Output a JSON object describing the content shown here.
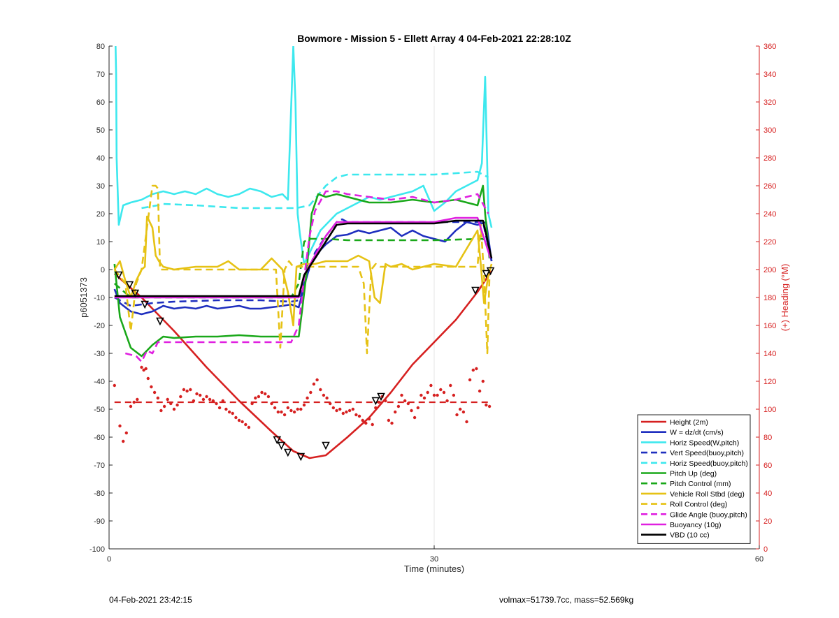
{
  "chart_data": {
    "type": "line",
    "title": "Bowmore - Mission 5 - Ellett Array 4 04-Feb-2021 22:28:10Z",
    "xlabel": "Time (minutes)",
    "ylabel": "p6051373",
    "y2label": "(+) Heading (°M)",
    "xlim": [
      0,
      60
    ],
    "ylim": [
      -100,
      80
    ],
    "y2lim": [
      0,
      360
    ],
    "x_ticks": [
      0,
      30,
      60
    ],
    "y_ticks": [
      -100,
      -90,
      -80,
      -70,
      -60,
      -50,
      -40,
      -30,
      -20,
      -10,
      0,
      10,
      20,
      30,
      40,
      50,
      60,
      70,
      80
    ],
    "y2_ticks": [
      0,
      20,
      40,
      60,
      80,
      100,
      120,
      140,
      160,
      180,
      200,
      220,
      240,
      260,
      280,
      300,
      320,
      340,
      360
    ],
    "grid": "x-only at 30",
    "legend_position": "bottom-right",
    "colors": {
      "height": "#d62020",
      "w": "#1f2fbf",
      "horiz": "#3de8ee",
      "pitch": "#1aa81a",
      "roll": "#e6c215",
      "glide": "#e020e0",
      "vbd": "#000000",
      "right_axis": "#d62020"
    },
    "series": [
      {
        "name": "Height (2m)",
        "style": "solid",
        "color": "#d62020",
        "x": [
          0.5,
          3,
          6,
          9,
          12,
          15,
          17,
          18.5,
          20,
          22,
          24,
          26,
          28,
          30,
          32,
          34,
          35.3
        ],
        "y": [
          -1.5,
          -10,
          -22,
          -35,
          -47,
          -58,
          -65,
          -67.5,
          -66.5,
          -60,
          -53,
          -44,
          -34,
          -26,
          -18,
          -8,
          -0.5
        ]
      },
      {
        "name": "W = dz/dt (cm/s)",
        "style": "solid",
        "color": "#1f2fbf",
        "x": [
          0.5,
          1,
          2,
          3,
          4,
          5,
          6,
          7,
          8,
          9,
          10,
          11,
          12,
          13,
          14,
          15,
          16,
          16.8,
          17.5,
          18,
          18.5,
          19,
          19.5,
          20,
          21,
          22,
          23,
          24,
          25,
          26,
          27,
          28,
          29,
          30,
          31,
          32,
          33,
          34,
          34.8,
          35.3
        ],
        "y": [
          -7,
          -12,
          -15,
          -16,
          -15,
          -13,
          -14,
          -13.5,
          -14,
          -13,
          -14,
          -13.5,
          -13,
          -14,
          -14,
          -13.5,
          -13,
          -12.5,
          -13.5,
          -6,
          1,
          4,
          7,
          9,
          12,
          12.5,
          14,
          13,
          14,
          15,
          12,
          14,
          12,
          11,
          10,
          14,
          17,
          16,
          17,
          3
        ]
      },
      {
        "name": "Horiz Speed(W,pitch)",
        "style": "solid",
        "color": "#3de8ee",
        "x": [
          0.6,
          0.65,
          0.7,
          0.9,
          1.3,
          2,
          3,
          4,
          5,
          6,
          7,
          8,
          9,
          10,
          11,
          12,
          13,
          14,
          15,
          16,
          16.5,
          17,
          17.2,
          17.4,
          17.6,
          18,
          18.5,
          19,
          19.5,
          20,
          21,
          22,
          23,
          24,
          25,
          26,
          27,
          28,
          29,
          30,
          31,
          32,
          33,
          34,
          34.4,
          34.7,
          35,
          35.3
        ],
        "y": [
          80,
          70,
          40,
          16,
          23,
          24,
          25,
          27,
          28,
          27,
          28,
          27,
          29,
          27,
          26,
          27,
          29,
          28,
          26,
          27,
          25,
          80,
          60,
          20,
          13,
          2,
          6,
          10,
          14,
          16,
          20,
          22,
          24,
          26,
          25,
          26,
          27,
          28,
          30,
          21,
          24,
          28,
          30,
          32,
          38,
          69,
          20,
          15
        ]
      },
      {
        "name": "Vert Speed(buoy,pitch)",
        "style": "dashed",
        "color": "#1f2fbf",
        "x": [
          0.5,
          2,
          4,
          6,
          10,
          14,
          16.8,
          17.5,
          18,
          19,
          20,
          21,
          21.5,
          22,
          24,
          26,
          28,
          30,
          33,
          34.5,
          35.3
        ],
        "y": [
          -10,
          -13,
          -12,
          -11.5,
          -11,
          -11,
          -11.5,
          -11,
          -5,
          6,
          12,
          17,
          18,
          17,
          17,
          17,
          17,
          17,
          17,
          17,
          3
        ]
      },
      {
        "name": "Horiz Speed(buoy,pitch)",
        "style": "dashed",
        "color": "#3de8ee",
        "x": [
          3,
          4.5,
          5,
          8,
          12,
          16.8,
          17.3,
          18.5,
          20,
          21,
          22,
          23,
          28,
          30,
          34,
          35
        ],
        "y": [
          22,
          23,
          23.5,
          23,
          22,
          22,
          22,
          23,
          30,
          33,
          34,
          34,
          34,
          34,
          35,
          33
        ]
      },
      {
        "name": "Pitch Up (deg)",
        "style": "solid",
        "color": "#1aa81a",
        "x": [
          0.5,
          1,
          2,
          3,
          4,
          5,
          6,
          8,
          10,
          12,
          14,
          16,
          16.8,
          17.5,
          17.8,
          18.2,
          18.7,
          19.3,
          20,
          21,
          22,
          24,
          26,
          28,
          30,
          32,
          34,
          34.5,
          34.7,
          35.1
        ],
        "y": [
          2,
          -17,
          -28,
          -31,
          -27,
          -24,
          -24.5,
          -24,
          -24,
          -23.5,
          -24,
          -24,
          -24,
          -24,
          -15,
          -2,
          20,
          27,
          26,
          27,
          26,
          24,
          24,
          25,
          24,
          25,
          23,
          30,
          20,
          4
        ]
      },
      {
        "name": "Pitch Control (mm)",
        "style": "dashed",
        "color": "#1aa81a",
        "x": [
          0.5,
          2,
          4,
          16.8,
          17.5,
          18,
          18.6,
          20,
          22,
          30,
          34.5,
          35
        ],
        "y": [
          -5,
          -10,
          -10,
          -10,
          -5,
          10,
          11,
          11,
          10.5,
          10.5,
          11,
          8
        ]
      },
      {
        "name": "Vehicle Roll Stbd (deg)",
        "style": "solid",
        "color": "#e6c215",
        "x": [
          0.5,
          1,
          1.5,
          2,
          2.5,
          3,
          3.3,
          3.5,
          4,
          4.3,
          4.6,
          5,
          6,
          8,
          10,
          11,
          12,
          14,
          15,
          16,
          16.5,
          17,
          17.3,
          18,
          19,
          20,
          21,
          22,
          23,
          24,
          24.5,
          25,
          25.5,
          26,
          27,
          28,
          30,
          32,
          34,
          34.3,
          34.6,
          35,
          35.3
        ],
        "y": [
          0,
          3,
          -4,
          -10,
          -4,
          0,
          1,
          19,
          15,
          5,
          3,
          1,
          0,
          1,
          1,
          3,
          0,
          0,
          4,
          0,
          -8,
          -20,
          1,
          2,
          2,
          3,
          3,
          3,
          5,
          3,
          -10,
          -12,
          2,
          1,
          2,
          0,
          2,
          1,
          14,
          2,
          -12,
          -2,
          2
        ]
      },
      {
        "name": "Roll Control (deg)",
        "style": "dashed",
        "color": "#e6c215",
        "x": [
          0.5,
          1.5,
          2,
          2.5,
          3,
          4,
          4.3,
          4.5,
          4.7,
          5,
          15,
          15.4,
          15.8,
          16.2,
          16.6,
          17,
          20,
          23,
          23.5,
          23.8,
          24.2,
          24.6,
          25,
          34,
          34.3,
          34.6,
          34.9,
          35.1
        ],
        "y": [
          0,
          -5,
          -22,
          -5,
          0,
          30,
          30,
          29,
          0,
          0,
          0,
          0,
          -28,
          0,
          3,
          1,
          1,
          1,
          -5,
          -30,
          0,
          2,
          1,
          1,
          16,
          -2,
          -30,
          -2
        ]
      },
      {
        "name": "Glide Angle (buoy,pitch)",
        "style": "dashed",
        "color": "#e020e0",
        "x": [
          1.5,
          2.5,
          3,
          3.5,
          4,
          4.5,
          5,
          6,
          8,
          10,
          12,
          14,
          16,
          16.8,
          17.5,
          18,
          18.5,
          19,
          20,
          21,
          22,
          24,
          26,
          28,
          30,
          32,
          34,
          35
        ],
        "y": [
          -30,
          -31,
          -33,
          -29,
          -30,
          -26,
          -26,
          -26,
          -26,
          -26,
          -26,
          -26,
          -26,
          -26,
          -20,
          -3,
          12,
          21,
          28,
          28,
          27,
          26,
          25,
          26,
          24,
          25,
          27,
          20
        ]
      },
      {
        "name": "Buoyancy (10g)",
        "style": "solid",
        "color": "#e020e0",
        "x": [
          0.5,
          16.8,
          17.5,
          18,
          20,
          21,
          22,
          26,
          30,
          32,
          34,
          35.2
        ],
        "y": [
          -10,
          -10,
          -10,
          -2,
          12,
          17,
          17,
          17,
          17,
          18.5,
          18.5,
          4
        ]
      },
      {
        "name": "VBD (10 cc)",
        "style": "solid",
        "color": "#000000",
        "x": [
          0.5,
          16.8,
          17.5,
          18,
          20,
          21,
          22,
          26,
          30,
          32,
          34.5,
          35.3
        ],
        "y": [
          -9.5,
          -9.5,
          -9.5,
          -2,
          10,
          16,
          16.5,
          16.5,
          16.5,
          17.5,
          17.5,
          4
        ]
      }
    ],
    "reference_lines": [
      {
        "axis": "y2",
        "value": 105,
        "style": "dashed",
        "color": "#d62020",
        "x": [
          0.5,
          35.3
        ]
      }
    ],
    "heading_points": {
      "axis": "y2",
      "color": "#d62020",
      "x": [
        0.5,
        1.0,
        1.3,
        1.6,
        2.0,
        2.3,
        2.6,
        3.0,
        3.2,
        3.4,
        3.6,
        3.9,
        4.2,
        4.5,
        4.8,
        5.1,
        5.4,
        5.7,
        6.0,
        6.3,
        6.6,
        6.9,
        7.2,
        7.5,
        7.8,
        8.1,
        8.4,
        8.7,
        9.0,
        9.3,
        9.6,
        9.9,
        10.2,
        10.5,
        10.8,
        11.1,
        11.4,
        11.7,
        12.0,
        12.3,
        12.6,
        12.9,
        13.2,
        13.5,
        13.8,
        14.1,
        14.4,
        14.7,
        15.0,
        15.3,
        15.6,
        15.9,
        16.2,
        16.5,
        16.8,
        17.1,
        17.4,
        17.7,
        18.0,
        18.3,
        18.6,
        18.9,
        19.2,
        19.5,
        19.8,
        20.1,
        20.4,
        20.7,
        21.0,
        21.3,
        21.6,
        21.9,
        22.2,
        22.5,
        22.8,
        23.1,
        23.4,
        23.7,
        24.0,
        24.3,
        24.6,
        24.9,
        25.2,
        25.5,
        25.8,
        26.1,
        26.4,
        26.7,
        27.0,
        27.3,
        27.6,
        27.9,
        28.2,
        28.5,
        28.8,
        29.1,
        29.4,
        29.7,
        30.0,
        30.3,
        30.6,
        30.9,
        31.2,
        31.5,
        31.8,
        32.1,
        32.4,
        32.7,
        33.0,
        33.3,
        33.6,
        33.9,
        34.2,
        34.5,
        34.8,
        35.1
      ],
      "y": [
        117,
        88,
        77,
        83,
        102,
        105,
        107,
        130,
        128,
        129,
        122,
        116,
        112,
        108,
        99,
        102,
        107,
        104,
        100,
        103,
        109,
        114,
        113,
        114,
        106,
        111,
        110,
        107,
        109,
        107,
        106,
        104,
        101,
        106,
        100,
        98,
        97,
        94,
        92,
        91,
        89,
        87,
        104,
        108,
        109,
        112,
        111,
        109,
        104,
        101,
        98,
        98,
        96,
        101,
        99,
        98,
        100,
        100,
        103,
        108,
        112,
        118,
        121,
        114,
        110,
        108,
        104,
        101,
        99,
        100,
        97,
        98,
        99,
        100,
        96,
        95,
        92,
        90,
        93,
        89,
        101,
        105,
        109,
        106,
        92,
        90,
        98,
        102,
        110,
        106,
        104,
        99,
        94,
        101,
        110,
        108,
        112,
        117,
        110,
        110,
        114,
        112,
        106,
        117,
        110,
        96,
        100,
        98,
        91,
        121,
        128,
        129,
        113,
        120,
        103,
        102
      ]
    },
    "triangle_markers": {
      "color": "#000000",
      "x": [
        0.9,
        1.9,
        2.4,
        3.3,
        4.7,
        15.5,
        15.9,
        16.5,
        17.7,
        20.0,
        24.6,
        25.1,
        33.8,
        34.8,
        35.2
      ],
      "y": [
        -2,
        -5.5,
        -8.5,
        -12.5,
        -18.5,
        -61,
        -63,
        -65.5,
        -67,
        -63,
        -47,
        -45.5,
        -7.5,
        -1.5,
        -0.5
      ]
    }
  },
  "footer": {
    "left": "04-Feb-2021 23:42:15",
    "right": "volmax=51739.7cc, mass=52.569kg"
  }
}
